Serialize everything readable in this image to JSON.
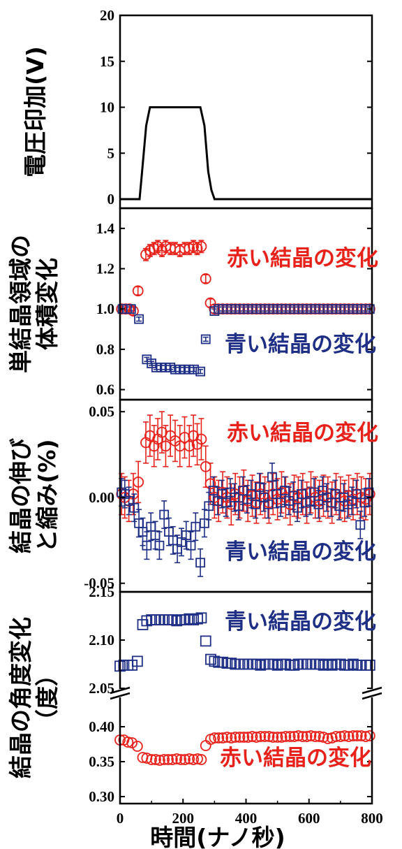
{
  "colors": {
    "red": "#e8221b",
    "blue": "#1f2f86",
    "black": "#000000"
  },
  "chart_data": [
    {
      "type": "line",
      "ylabel": "電圧印加(V)",
      "ylim": [
        0,
        20
      ],
      "yticks": [
        "0",
        "5",
        "10",
        "15",
        "20"
      ],
      "x": [
        0,
        62,
        70,
        83,
        95,
        255,
        268,
        280,
        290,
        300,
        800
      ],
      "y": [
        0,
        0,
        3,
        8,
        10,
        10,
        8,
        3,
        1,
        0,
        0
      ]
    },
    {
      "type": "scatter",
      "ylabel": [
        "単結晶領域の",
        "体積変化"
      ],
      "ylim": [
        0.55,
        1.5
      ],
      "yticks": [
        "0.6",
        "0.8",
        "1.0",
        "1.2",
        "1.4"
      ],
      "annotations": [
        "赤い結晶の変化",
        "青い結晶の変化"
      ],
      "series": [
        {
          "color": "red",
          "marker": "circle",
          "x": [
            5,
            18,
            30,
            42,
            57,
            82,
            95,
            108,
            120,
            133,
            145,
            160,
            175,
            190,
            205,
            220,
            233,
            245,
            258,
            272,
            287,
            300,
            313,
            326,
            340,
            353,
            366,
            380,
            393,
            406,
            420,
            433,
            446,
            460,
            473,
            486,
            500,
            513,
            526,
            540,
            553,
            566,
            580,
            593,
            606,
            620,
            633,
            646,
            660,
            673,
            686,
            700,
            713,
            726,
            740,
            753,
            766,
            780,
            793
          ],
          "y": [
            1.0,
            1.0,
            1.0,
            0.99,
            1.09,
            1.27,
            1.29,
            1.3,
            1.31,
            1.29,
            1.31,
            1.3,
            1.3,
            1.29,
            1.3,
            1.3,
            1.31,
            1.3,
            1.31,
            1.15,
            1.03,
            1.0,
            1.0,
            1.0,
            1.0,
            1.0,
            1.0,
            1.0,
            1.0,
            1.0,
            1.0,
            1.0,
            1.0,
            1.0,
            1.0,
            1.0,
            1.0,
            1.0,
            1.0,
            1.0,
            1.0,
            1.0,
            1.0,
            1.0,
            1.0,
            1.0,
            1.0,
            1.0,
            1.0,
            1.0,
            1.0,
            1.0,
            1.0,
            1.0,
            1.0,
            1.0,
            1.0,
            1.0,
            1.0
          ],
          "err": [
            0.02,
            0.02,
            0.02,
            0.02,
            0.02,
            0.03,
            0.03,
            0.03,
            0.03,
            0.03,
            0.03,
            0.03,
            0.03,
            0.03,
            0.03,
            0.03,
            0.03,
            0.03,
            0.03,
            0.02,
            0.02,
            0.02,
            0.02,
            0.02,
            0.02,
            0.02,
            0.02,
            0.02,
            0.02,
            0.02,
            0.02,
            0.02,
            0.02,
            0.02,
            0.02,
            0.02,
            0.02,
            0.02,
            0.02,
            0.02,
            0.02,
            0.02,
            0.02,
            0.02,
            0.02,
            0.02,
            0.02,
            0.02,
            0.02,
            0.02,
            0.02,
            0.02,
            0.02,
            0.02,
            0.02,
            0.02,
            0.02,
            0.02,
            0.02
          ]
        },
        {
          "color": "blue",
          "marker": "square",
          "x": [
            8,
            22,
            35,
            60,
            85,
            100,
            115,
            130,
            145,
            160,
            175,
            190,
            205,
            220,
            235,
            255,
            272,
            300,
            313,
            326,
            340,
            353,
            366,
            380,
            393,
            406,
            420,
            433,
            446,
            460,
            473,
            486,
            500,
            513,
            526,
            540,
            553,
            566,
            580,
            593,
            606,
            620,
            633,
            646,
            660,
            673,
            686,
            700,
            713,
            726,
            740,
            753,
            766,
            780,
            793
          ],
          "y": [
            1.0,
            1.0,
            1.0,
            0.95,
            0.75,
            0.73,
            0.71,
            0.71,
            0.71,
            0.71,
            0.7,
            0.7,
            0.7,
            0.7,
            0.7,
            0.69,
            0.85,
            0.99,
            1.0,
            1.0,
            1.0,
            1.0,
            1.0,
            1.0,
            1.0,
            1.0,
            1.0,
            1.0,
            1.0,
            1.0,
            1.0,
            1.0,
            1.0,
            1.0,
            1.0,
            1.0,
            1.0,
            1.0,
            1.0,
            1.0,
            1.0,
            1.0,
            1.0,
            1.0,
            1.0,
            1.0,
            1.0,
            1.0,
            1.0,
            1.0,
            1.0,
            1.0,
            1.0,
            1.0,
            1.0
          ],
          "err": [
            0.01,
            0.01,
            0.01,
            0.01,
            0.01,
            0.01,
            0.01,
            0.01,
            0.01,
            0.01,
            0.01,
            0.01,
            0.01,
            0.01,
            0.01,
            0.01,
            0.01,
            0.01,
            0.01,
            0.01,
            0.01,
            0.01,
            0.01,
            0.01,
            0.01,
            0.01,
            0.01,
            0.01,
            0.01,
            0.01,
            0.01,
            0.01,
            0.01,
            0.01,
            0.01,
            0.01,
            0.01,
            0.01,
            0.01,
            0.01,
            0.01,
            0.01,
            0.01,
            0.01,
            0.01,
            0.01,
            0.01,
            0.01,
            0.01,
            0.01,
            0.01,
            0.01,
            0.01,
            0.01,
            0.01
          ]
        }
      ]
    },
    {
      "type": "scatter",
      "ylabel": [
        "結晶の伸び",
        "と縮み(%)"
      ],
      "ylim": [
        -0.055,
        0.057
      ],
      "yticks": [
        "-0.05",
        "0.00",
        "0.05"
      ],
      "annotations": [
        "赤い結晶の変化",
        "青い結晶の変化"
      ],
      "series": [
        {
          "color": "red",
          "marker": "circle",
          "x": [
            5,
            15,
            28,
            42,
            58,
            82,
            95,
            108,
            120,
            133,
            145,
            160,
            175,
            190,
            205,
            220,
            233,
            245,
            258,
            272,
            287,
            300,
            313,
            326,
            340,
            353,
            366,
            380,
            393,
            406,
            420,
            433,
            446,
            460,
            473,
            486,
            500,
            513,
            526,
            540,
            553,
            566,
            580,
            593,
            606,
            620,
            633,
            646,
            660,
            673,
            686,
            700,
            713,
            726,
            740,
            753,
            766,
            780,
            793
          ],
          "y": [
            0.002,
            0.0,
            -0.002,
            0.002,
            0.009,
            0.032,
            0.036,
            0.03,
            0.034,
            0.038,
            0.03,
            0.036,
            0.033,
            0.03,
            0.035,
            0.03,
            0.036,
            0.031,
            0.034,
            0.018,
            0.008,
            0.0,
            -0.002,
            0.003,
            0.0,
            -0.004,
            0.002,
            0.0,
            0.004,
            -0.002,
            0.001,
            -0.003,
            0.002,
            0.0,
            -0.003,
            0.002,
            -0.001,
            0.003,
            0.0,
            -0.004,
            0.001,
            0.0,
            0.002,
            -0.003,
            0.003,
            0.0,
            -0.002,
            0.001,
            0.0,
            -0.003,
            0.002,
            0.0,
            -0.002,
            0.001,
            -0.001,
            0.002,
            0.0,
            -0.001,
            0.002
          ],
          "err": [
            0.012,
            0.012,
            0.012,
            0.012,
            0.012,
            0.012,
            0.012,
            0.012,
            0.012,
            0.012,
            0.012,
            0.012,
            0.012,
            0.012,
            0.012,
            0.012,
            0.012,
            0.012,
            0.012,
            0.012,
            0.012,
            0.012,
            0.012,
            0.012,
            0.012,
            0.012,
            0.012,
            0.012,
            0.012,
            0.012,
            0.012,
            0.012,
            0.012,
            0.012,
            0.012,
            0.012,
            0.012,
            0.012,
            0.012,
            0.012,
            0.012,
            0.012,
            0.012,
            0.012,
            0.012,
            0.012,
            0.012,
            0.012,
            0.012,
            0.012,
            0.012,
            0.012,
            0.012,
            0.012,
            0.012,
            0.012,
            0.012,
            0.012,
            0.012
          ]
        },
        {
          "color": "blue",
          "marker": "square",
          "x": [
            5,
            15,
            28,
            45,
            60,
            72,
            85,
            98,
            112,
            125,
            140,
            155,
            168,
            182,
            195,
            210,
            225,
            240,
            255,
            268,
            282,
            296,
            310,
            323,
            336,
            350,
            363,
            376,
            390,
            403,
            416,
            430,
            443,
            456,
            470,
            483,
            496,
            510,
            523,
            536,
            550,
            563,
            576,
            590,
            603,
            616,
            630,
            643,
            656,
            670,
            683,
            696,
            710,
            723,
            736,
            750,
            763,
            776,
            790
          ],
          "y": [
            0.003,
            0.002,
            -0.002,
            -0.006,
            -0.015,
            -0.02,
            -0.028,
            -0.017,
            -0.022,
            -0.028,
            -0.01,
            -0.02,
            -0.025,
            -0.03,
            -0.026,
            -0.022,
            -0.028,
            -0.017,
            -0.038,
            -0.015,
            -0.005,
            0.004,
            -0.002,
            0.002,
            -0.003,
            0.003,
            0.0,
            -0.005,
            0.004,
            -0.001,
            0.002,
            -0.004,
            0.006,
            0.0,
            -0.004,
            0.012,
            0.002,
            -0.003,
            0.004,
            -0.002,
            0.001,
            -0.006,
            0.002,
            -0.003,
            -0.002,
            0.003,
            -0.004,
            0.004,
            0.0,
            -0.003,
            0.002,
            -0.005,
            0.0,
            -0.004,
            -0.002,
            0.002,
            -0.016,
            -0.003,
            0.003
          ],
          "err": [
            0.008,
            0.008,
            0.008,
            0.008,
            0.008,
            0.008,
            0.008,
            0.008,
            0.008,
            0.008,
            0.008,
            0.008,
            0.008,
            0.008,
            0.008,
            0.008,
            0.008,
            0.008,
            0.008,
            0.008,
            0.008,
            0.008,
            0.008,
            0.008,
            0.008,
            0.008,
            0.008,
            0.008,
            0.008,
            0.008,
            0.008,
            0.008,
            0.008,
            0.008,
            0.008,
            0.008,
            0.008,
            0.008,
            0.008,
            0.008,
            0.008,
            0.008,
            0.008,
            0.008,
            0.008,
            0.008,
            0.008,
            0.008,
            0.008,
            0.008,
            0.008,
            0.008,
            0.008,
            0.008,
            0.008,
            0.008,
            0.008,
            0.008,
            0.008
          ]
        }
      ]
    },
    {
      "type": "scatter",
      "ylabel": [
        "結晶の角度変化",
        "（度）"
      ],
      "axis_break": true,
      "upper": {
        "ylim": [
          2.05,
          2.15
        ],
        "yticks": [
          "2.05",
          "2.10",
          "2.15"
        ]
      },
      "lower": {
        "ylim": [
          0.3,
          0.43
        ],
        "yticks": [
          "0.30",
          "0.35",
          "0.40"
        ]
      },
      "annotations": [
        "青い結晶の変化",
        "赤い結晶の変化"
      ],
      "series": [
        {
          "color": "blue",
          "marker": "square",
          "panel": "upper",
          "x": [
            0,
            12,
            25,
            38,
            55,
            72,
            85,
            100,
            113,
            126,
            140,
            153,
            166,
            180,
            193,
            206,
            220,
            233,
            246,
            258,
            272,
            288,
            300,
            313,
            326,
            340,
            353,
            366,
            380,
            393,
            406,
            420,
            433,
            446,
            460,
            473,
            486,
            500,
            513,
            526,
            540,
            553,
            566,
            580,
            593,
            606,
            620,
            633,
            646,
            660,
            673,
            686,
            700,
            713,
            726,
            740,
            753,
            766,
            780,
            793
          ],
          "y": [
            2.073,
            2.074,
            2.074,
            2.074,
            2.078,
            2.116,
            2.12,
            2.121,
            2.121,
            2.121,
            2.121,
            2.121,
            2.121,
            2.12,
            2.121,
            2.121,
            2.122,
            2.121,
            2.122,
            2.123,
            2.099,
            2.08,
            2.078,
            2.077,
            2.077,
            2.076,
            2.076,
            2.075,
            2.075,
            2.075,
            2.075,
            2.075,
            2.075,
            2.074,
            2.075,
            2.075,
            2.075,
            2.074,
            2.075,
            2.075,
            2.074,
            2.074,
            2.075,
            2.075,
            2.075,
            2.075,
            2.075,
            2.075,
            2.074,
            2.075,
            2.074,
            2.075,
            2.075,
            2.074,
            2.074,
            2.075,
            2.074,
            2.074,
            2.074,
            2.074
          ]
        },
        {
          "color": "red",
          "marker": "circle",
          "panel": "lower",
          "x": [
            0,
            12,
            25,
            38,
            55,
            72,
            85,
            100,
            113,
            126,
            140,
            153,
            166,
            180,
            193,
            206,
            220,
            233,
            246,
            258,
            272,
            288,
            300,
            313,
            326,
            340,
            353,
            366,
            380,
            393,
            406,
            420,
            433,
            446,
            460,
            473,
            486,
            500,
            513,
            526,
            540,
            553,
            566,
            580,
            593,
            606,
            620,
            633,
            646,
            660,
            673,
            686,
            700,
            713,
            726,
            740,
            753,
            766,
            780,
            793
          ],
          "y": [
            0.381,
            0.381,
            0.378,
            0.377,
            0.372,
            0.356,
            0.355,
            0.353,
            0.353,
            0.352,
            0.353,
            0.353,
            0.353,
            0.354,
            0.353,
            0.353,
            0.354,
            0.353,
            0.354,
            0.353,
            0.373,
            0.382,
            0.384,
            0.384,
            0.384,
            0.385,
            0.384,
            0.385,
            0.385,
            0.385,
            0.385,
            0.386,
            0.385,
            0.386,
            0.386,
            0.386,
            0.385,
            0.385,
            0.385,
            0.386,
            0.386,
            0.386,
            0.387,
            0.386,
            0.386,
            0.387,
            0.386,
            0.386,
            0.385,
            0.383,
            0.384,
            0.386,
            0.386,
            0.387,
            0.386,
            0.387,
            0.387,
            0.387,
            0.386,
            0.387
          ]
        }
      ]
    }
  ],
  "xaxis": {
    "xlabel": "時間(ナノ秒)",
    "xlim": [
      0,
      800
    ],
    "xticks": [
      "0",
      "200",
      "400",
      "600",
      "800"
    ]
  }
}
